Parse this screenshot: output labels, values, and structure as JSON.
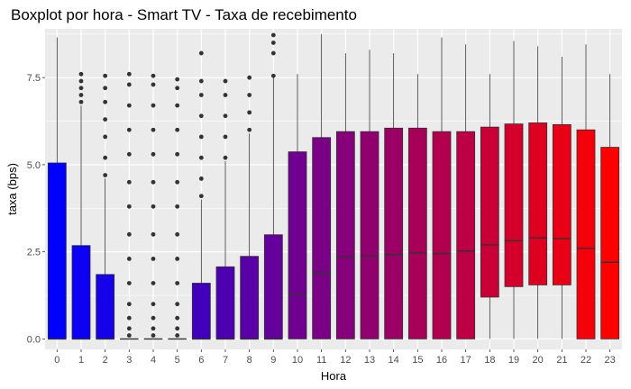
{
  "chart_data": {
    "type": "boxplot",
    "title": "Boxplot por hora - Smart TV - Taxa de recebimento",
    "xlabel": "Hora",
    "ylabel": "taxa (bps)",
    "ylim": [
      -0.3,
      8.9
    ],
    "yticks": [
      0.0,
      2.5,
      5.0,
      7.5
    ],
    "ytick_labels": [
      "0.0",
      "2.5",
      "5.0",
      "7.5"
    ],
    "grid": true,
    "legend": "none",
    "categories": [
      "0",
      "1",
      "2",
      "3",
      "4",
      "5",
      "6",
      "7",
      "8",
      "9",
      "10",
      "11",
      "12",
      "13",
      "14",
      "15",
      "16",
      "17",
      "18",
      "19",
      "20",
      "21",
      "22",
      "23"
    ],
    "boxes": [
      {
        "hour": "0",
        "min": 0,
        "q1": 0,
        "median": 0,
        "q3": 5.05,
        "max": 8.65,
        "outliers": []
      },
      {
        "hour": "1",
        "min": 0,
        "q1": 0,
        "median": 0,
        "q3": 2.68,
        "max": 6.7,
        "outliers": [
          6.8,
          7.0,
          7.2,
          7.4,
          7.6
        ]
      },
      {
        "hour": "2",
        "min": 0,
        "q1": 0,
        "median": 0,
        "q3": 1.85,
        "max": 4.6,
        "outliers": [
          4.7,
          5.2,
          5.8,
          6.3,
          6.8,
          7.2,
          7.55
        ]
      },
      {
        "hour": "3",
        "min": 0,
        "q1": 0,
        "median": 0,
        "q3": 0,
        "max": 0,
        "outliers": [
          0.1,
          0.3,
          0.6,
          1.0,
          1.6,
          2.3,
          3.0,
          3.8,
          4.5,
          5.3,
          6.0,
          6.7,
          7.3,
          7.6
        ]
      },
      {
        "hour": "4",
        "min": 0,
        "q1": 0,
        "median": 0,
        "q3": 0,
        "max": 0,
        "outliers": [
          0.1,
          0.3,
          0.6,
          1.0,
          1.6,
          2.3,
          3.0,
          3.8,
          4.5,
          5.3,
          6.0,
          6.7,
          7.3,
          7.55
        ]
      },
      {
        "hour": "5",
        "min": 0,
        "q1": 0,
        "median": 0,
        "q3": 0,
        "max": 0,
        "outliers": [
          0.1,
          0.3,
          0.6,
          1.0,
          1.6,
          2.3,
          3.0,
          3.8,
          4.5,
          5.3,
          6.0,
          6.7,
          7.2,
          7.45
        ]
      },
      {
        "hour": "6",
        "min": 0,
        "q1": 0,
        "median": 0,
        "q3": 1.6,
        "max": 4.0,
        "outliers": [
          4.1,
          4.6,
          5.2,
          5.8,
          6.4,
          7.0,
          7.4,
          8.2
        ]
      },
      {
        "hour": "7",
        "min": 0,
        "q1": 0,
        "median": 0,
        "q3": 2.07,
        "max": 5.1,
        "outliers": [
          5.2,
          5.8,
          6.4,
          7.0,
          7.4
        ]
      },
      {
        "hour": "8",
        "min": 0,
        "q1": 0,
        "median": 0,
        "q3": 2.37,
        "max": 5.9,
        "outliers": [
          6.0,
          6.5,
          7.0,
          7.5
        ]
      },
      {
        "hour": "9",
        "min": 0,
        "q1": 0,
        "median": 0,
        "q3": 2.99,
        "max": 7.5,
        "outliers": [
          7.55,
          8.2,
          8.5,
          8.72
        ]
      },
      {
        "hour": "10",
        "min": 0,
        "q1": 0,
        "median": 1.28,
        "q3": 5.37,
        "max": 7.6,
        "outliers": []
      },
      {
        "hour": "11",
        "min": 0,
        "q1": 0,
        "median": 1.9,
        "q3": 5.78,
        "max": 8.75,
        "outliers": []
      },
      {
        "hour": "12",
        "min": 0,
        "q1": 0,
        "median": 2.35,
        "q3": 5.95,
        "max": 8.2,
        "outliers": []
      },
      {
        "hour": "13",
        "min": 0,
        "q1": 0,
        "median": 2.38,
        "q3": 5.95,
        "max": 8.3,
        "outliers": []
      },
      {
        "hour": "14",
        "min": 0,
        "q1": 0,
        "median": 2.42,
        "q3": 6.05,
        "max": 8.2,
        "outliers": []
      },
      {
        "hour": "15",
        "min": 0,
        "q1": 0,
        "median": 2.47,
        "q3": 6.05,
        "max": 7.6,
        "outliers": []
      },
      {
        "hour": "16",
        "min": 0,
        "q1": 0,
        "median": 2.45,
        "q3": 5.95,
        "max": 8.65,
        "outliers": []
      },
      {
        "hour": "17",
        "min": 0,
        "q1": 0,
        "median": 2.52,
        "q3": 5.95,
        "max": 8.45,
        "outliers": []
      },
      {
        "hour": "18",
        "min": 0,
        "q1": 1.2,
        "median": 2.7,
        "q3": 6.08,
        "max": 7.6,
        "outliers": []
      },
      {
        "hour": "19",
        "min": 0,
        "q1": 1.5,
        "median": 2.82,
        "q3": 6.17,
        "max": 8.55,
        "outliers": []
      },
      {
        "hour": "20",
        "min": 0,
        "q1": 1.55,
        "median": 2.9,
        "q3": 6.2,
        "max": 8.4,
        "outliers": []
      },
      {
        "hour": "21",
        "min": 0,
        "q1": 1.55,
        "median": 2.88,
        "q3": 6.15,
        "max": 8.1,
        "outliers": []
      },
      {
        "hour": "22",
        "min": 0,
        "q1": 0,
        "median": 2.6,
        "q3": 6.0,
        "max": 8.45,
        "outliers": []
      },
      {
        "hour": "23",
        "min": 0,
        "q1": 0,
        "median": 2.2,
        "q3": 5.5,
        "max": 7.6,
        "outliers": []
      }
    ],
    "colors": {
      "panel_bg": "#ebebeb",
      "grid": "#ffffff",
      "box_outline": "#333333",
      "whisker": "#333333",
      "fill_start": "#0000ff",
      "fill_end": "#ff0000"
    }
  }
}
